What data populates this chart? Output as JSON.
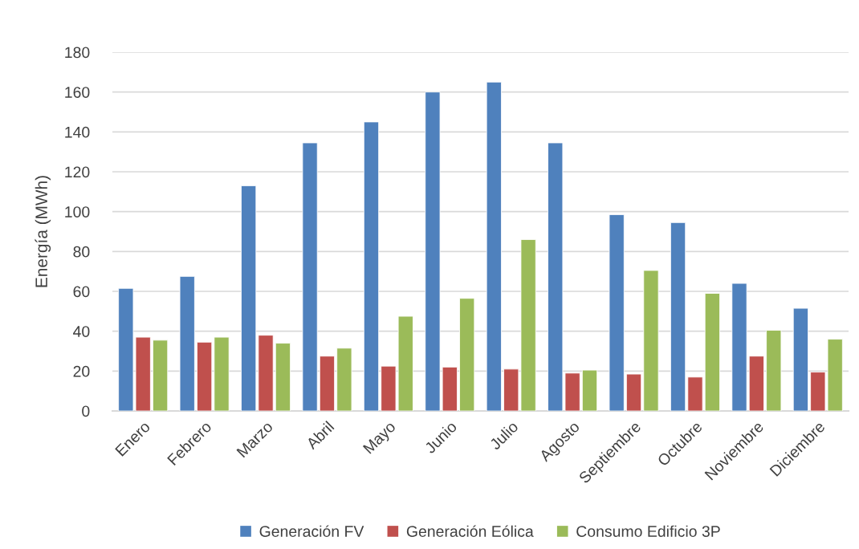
{
  "chart_data": {
    "type": "bar",
    "ylabel": "Energía (MWh)",
    "categories": [
      "Enero",
      "Febrero",
      "Marzo",
      "Abril",
      "Mayo",
      "Junio",
      "Julio",
      "Agosto",
      "Septiembre",
      "Octubre",
      "Noviembre",
      "Diciembre"
    ],
    "series": [
      {
        "name": "Generación FV",
        "color": "#4f81bd",
        "values": [
          61.5,
          67.5,
          113,
          134.5,
          145,
          160,
          165,
          134.5,
          98.5,
          94.5,
          64,
          51.5
        ]
      },
      {
        "name": "Generación Eólica",
        "color": "#c0504d",
        "values": [
          37,
          34.5,
          38,
          27.5,
          22.5,
          22,
          21,
          19,
          18.5,
          17,
          27.5,
          19.5
        ]
      },
      {
        "name": "Consumo Edificio 3P",
        "color": "#9bbb59",
        "values": [
          35.5,
          37,
          34,
          31.5,
          47.5,
          56.5,
          86,
          20.5,
          70.5,
          59,
          40.5,
          36
        ]
      }
    ],
    "ylim": [
      0,
      180
    ],
    "yticks": [
      0,
      20,
      40,
      60,
      80,
      100,
      120,
      140,
      160,
      180
    ],
    "grid": "y",
    "legend": "bottom"
  }
}
